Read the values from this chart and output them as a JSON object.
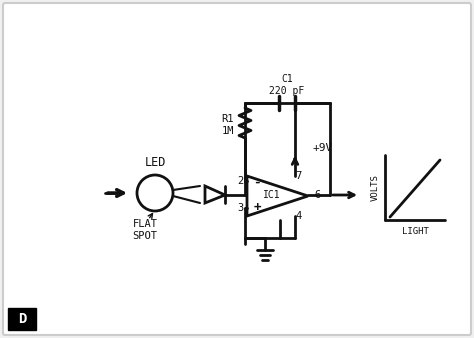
{
  "bg_color": "#f0f0f0",
  "inner_bg": "#ffffff",
  "line_color": "#111111",
  "text_color": "#111111",
  "label_D": "D",
  "label_LED": "LED",
  "label_FLAT_SPOT": "FLAT\nSPOT",
  "label_R1": "R1\n1M",
  "label_C1": "C1\n220 pF",
  "label_plus9V": "+9V",
  "label_IC1": "IC1",
  "label_pin2": "2",
  "label_pin3": "3",
  "label_pin4": "4",
  "label_pin6": "6",
  "label_pin7": "7",
  "label_VOLTS": "VOLTS",
  "label_LIGHT": "LIGHT",
  "lw": 2.0
}
